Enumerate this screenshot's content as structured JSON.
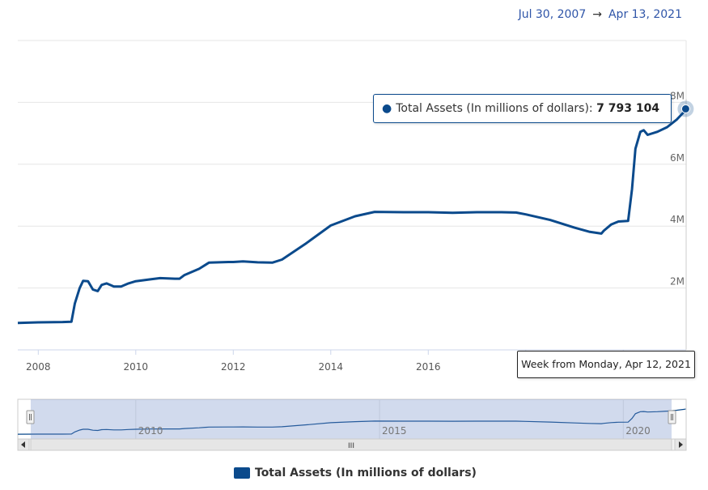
{
  "range": {
    "from": "Jul 30, 2007",
    "arrow": "→",
    "to": "Apr 13, 2021"
  },
  "chart_data": {
    "type": "line",
    "series": [
      {
        "name": "Total Assets (In millions of dollars)",
        "color": "#0b4a8c",
        "points": [
          [
            2007.58,
            0.87
          ],
          [
            2008.0,
            0.89
          ],
          [
            2008.5,
            0.9
          ],
          [
            2008.68,
            0.91
          ],
          [
            2008.75,
            1.5
          ],
          [
            2008.85,
            2.0
          ],
          [
            2008.92,
            2.23
          ],
          [
            2009.02,
            2.22
          ],
          [
            2009.12,
            1.95
          ],
          [
            2009.22,
            1.9
          ],
          [
            2009.3,
            2.1
          ],
          [
            2009.4,
            2.15
          ],
          [
            2009.55,
            2.05
          ],
          [
            2009.7,
            2.05
          ],
          [
            2009.85,
            2.15
          ],
          [
            2010.0,
            2.22
          ],
          [
            2010.3,
            2.28
          ],
          [
            2010.5,
            2.32
          ],
          [
            2010.8,
            2.3
          ],
          [
            2010.9,
            2.3
          ],
          [
            2011.0,
            2.42
          ],
          [
            2011.3,
            2.62
          ],
          [
            2011.5,
            2.82
          ],
          [
            2011.9,
            2.84
          ],
          [
            2012.0,
            2.84
          ],
          [
            2012.2,
            2.86
          ],
          [
            2012.5,
            2.83
          ],
          [
            2012.8,
            2.82
          ],
          [
            2013.0,
            2.92
          ],
          [
            2013.5,
            3.45
          ],
          [
            2014.0,
            4.02
          ],
          [
            2014.5,
            4.32
          ],
          [
            2014.9,
            4.46
          ],
          [
            2015.5,
            4.45
          ],
          [
            2016.0,
            4.45
          ],
          [
            2016.5,
            4.43
          ],
          [
            2017.0,
            4.45
          ],
          [
            2017.5,
            4.45
          ],
          [
            2017.8,
            4.44
          ],
          [
            2018.0,
            4.38
          ],
          [
            2018.5,
            4.2
          ],
          [
            2019.0,
            3.95
          ],
          [
            2019.3,
            3.82
          ],
          [
            2019.55,
            3.76
          ],
          [
            2019.6,
            3.85
          ],
          [
            2019.75,
            4.05
          ],
          [
            2019.9,
            4.15
          ],
          [
            2020.1,
            4.17
          ],
          [
            2020.18,
            5.2
          ],
          [
            2020.25,
            6.5
          ],
          [
            2020.35,
            7.05
          ],
          [
            2020.42,
            7.1
          ],
          [
            2020.5,
            6.95
          ],
          [
            2020.7,
            7.05
          ],
          [
            2020.9,
            7.2
          ],
          [
            2021.1,
            7.45
          ],
          [
            2021.25,
            7.7
          ],
          [
            2021.28,
            7.79
          ]
        ]
      }
    ],
    "xlim": [
      2007.58,
      2021.29
    ],
    "ylim": [
      0,
      10
    ],
    "x_ticks": [
      2008,
      2010,
      2012,
      2014,
      2016,
      2018,
      2020
    ],
    "x_tick_labels": [
      "2008",
      "2010",
      "2012",
      "2014",
      "2016",
      "",
      ""
    ],
    "y_ticks": [
      0,
      2,
      4,
      6,
      8
    ],
    "y_tick_labels": [
      "",
      "2M",
      "4M",
      "6M",
      "8M"
    ],
    "grid": true,
    "tooltip": {
      "series": "Total Assets (In millions of dollars):",
      "value": "7 793 104",
      "week": "Week from Monday, Apr 12, 2021"
    },
    "navigator": {
      "x_ticks": [
        2010,
        2015,
        2020
      ],
      "x_tick_labels": [
        "2010",
        "2015",
        "2020"
      ],
      "scroll_label": "III"
    },
    "legend": {
      "label": "Total Assets (In millions of dollars)",
      "placement": "bottom-center"
    }
  }
}
